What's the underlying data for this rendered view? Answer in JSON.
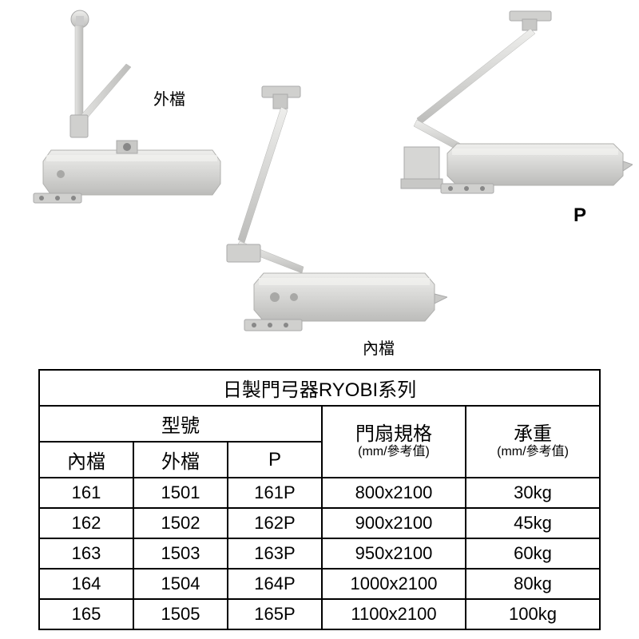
{
  "labels": {
    "outer": "外檔",
    "inner": "內檔",
    "p": "P"
  },
  "table": {
    "title": "日製門弓器RYOBI系列",
    "model_header": "型號",
    "door_header_top": "門扇規格",
    "door_header_sub": "(mm/參考值)",
    "weight_header_top": "承重",
    "weight_header_sub": "(mm/參考值)",
    "col_inner": "內檔",
    "col_outer": "外檔",
    "col_p": "P",
    "columns_width": [
      120,
      120,
      120,
      180,
      160
    ],
    "rows": [
      {
        "inner": "161",
        "outer": "1501",
        "p": "161P",
        "door": "800x2100",
        "weight": "30kg"
      },
      {
        "inner": "162",
        "outer": "1502",
        "p": "162P",
        "door": "900x2100",
        "weight": "45kg"
      },
      {
        "inner": "163",
        "outer": "1503",
        "p": "163P",
        "door": "950x2100",
        "weight": "60kg"
      },
      {
        "inner": "164",
        "outer": "1504",
        "p": "164P",
        "door": "1000x2100",
        "weight": "80kg"
      },
      {
        "inner": "165",
        "outer": "1505",
        "p": "165P",
        "door": "1100x2100",
        "weight": "100kg"
      }
    ],
    "border_color": "#000000",
    "text_color": "#000000",
    "font_size_title": 24,
    "font_size_header": 24,
    "font_size_data": 22
  },
  "colors": {
    "background": "#ffffff",
    "closer_body": "#d8d8d6",
    "closer_body_light": "#e8e8e6",
    "closer_body_dark": "#bfbfbd",
    "arm": "#cfcfcd",
    "arm_dark": "#b0b0ae"
  }
}
